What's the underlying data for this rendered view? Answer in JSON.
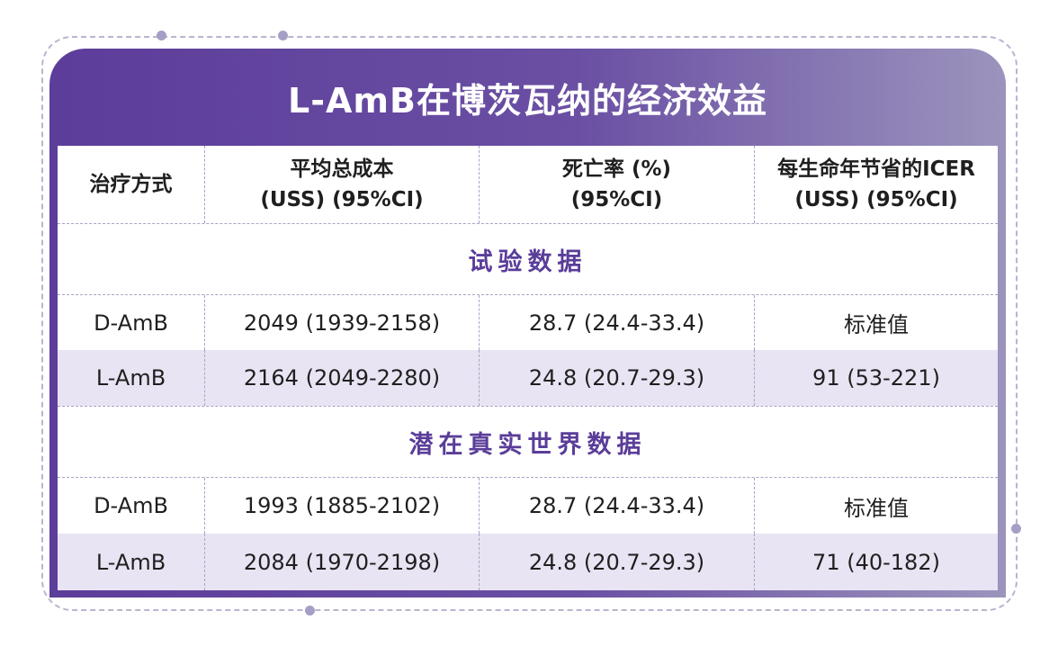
{
  "title": "L-AmB在博茨瓦纳的经济效益",
  "colors": {
    "accent": "#5c3d9a",
    "row_alt": "#e8e4f3",
    "section_text": "#5a3d99"
  },
  "headers": {
    "treatment": "治疗方式",
    "cost_line1": "平均总成本",
    "cost_line2": "(USS) (95%CI)",
    "mortality_line1": "死亡率 (%)",
    "mortality_line2": "(95%CI)",
    "icer_line1": "每生命年节省的ICER",
    "icer_line2": "(USS) (95%CI)"
  },
  "sections": [
    {
      "title": "试验数据",
      "rows": [
        {
          "treatment": "D-AmB",
          "cost": "2049 (1939-2158)",
          "mortality": "28.7 (24.4-33.4)",
          "icer": "标准值"
        },
        {
          "treatment": "L-AmB",
          "cost": "2164 (2049-2280)",
          "mortality": "24.8 (20.7-29.3)",
          "icer": "91 (53-221)"
        }
      ]
    },
    {
      "title": "潜在真实世界数据",
      "rows": [
        {
          "treatment": "D-AmB",
          "cost": "1993 (1885-2102)",
          "mortality": "28.7 (24.4-33.4)",
          "icer": "标准值"
        },
        {
          "treatment": "L-AmB",
          "cost": "2084 (1970-2198)",
          "mortality": "24.8 (20.7-29.3)",
          "icer": "71 (40-182)"
        }
      ]
    }
  ]
}
